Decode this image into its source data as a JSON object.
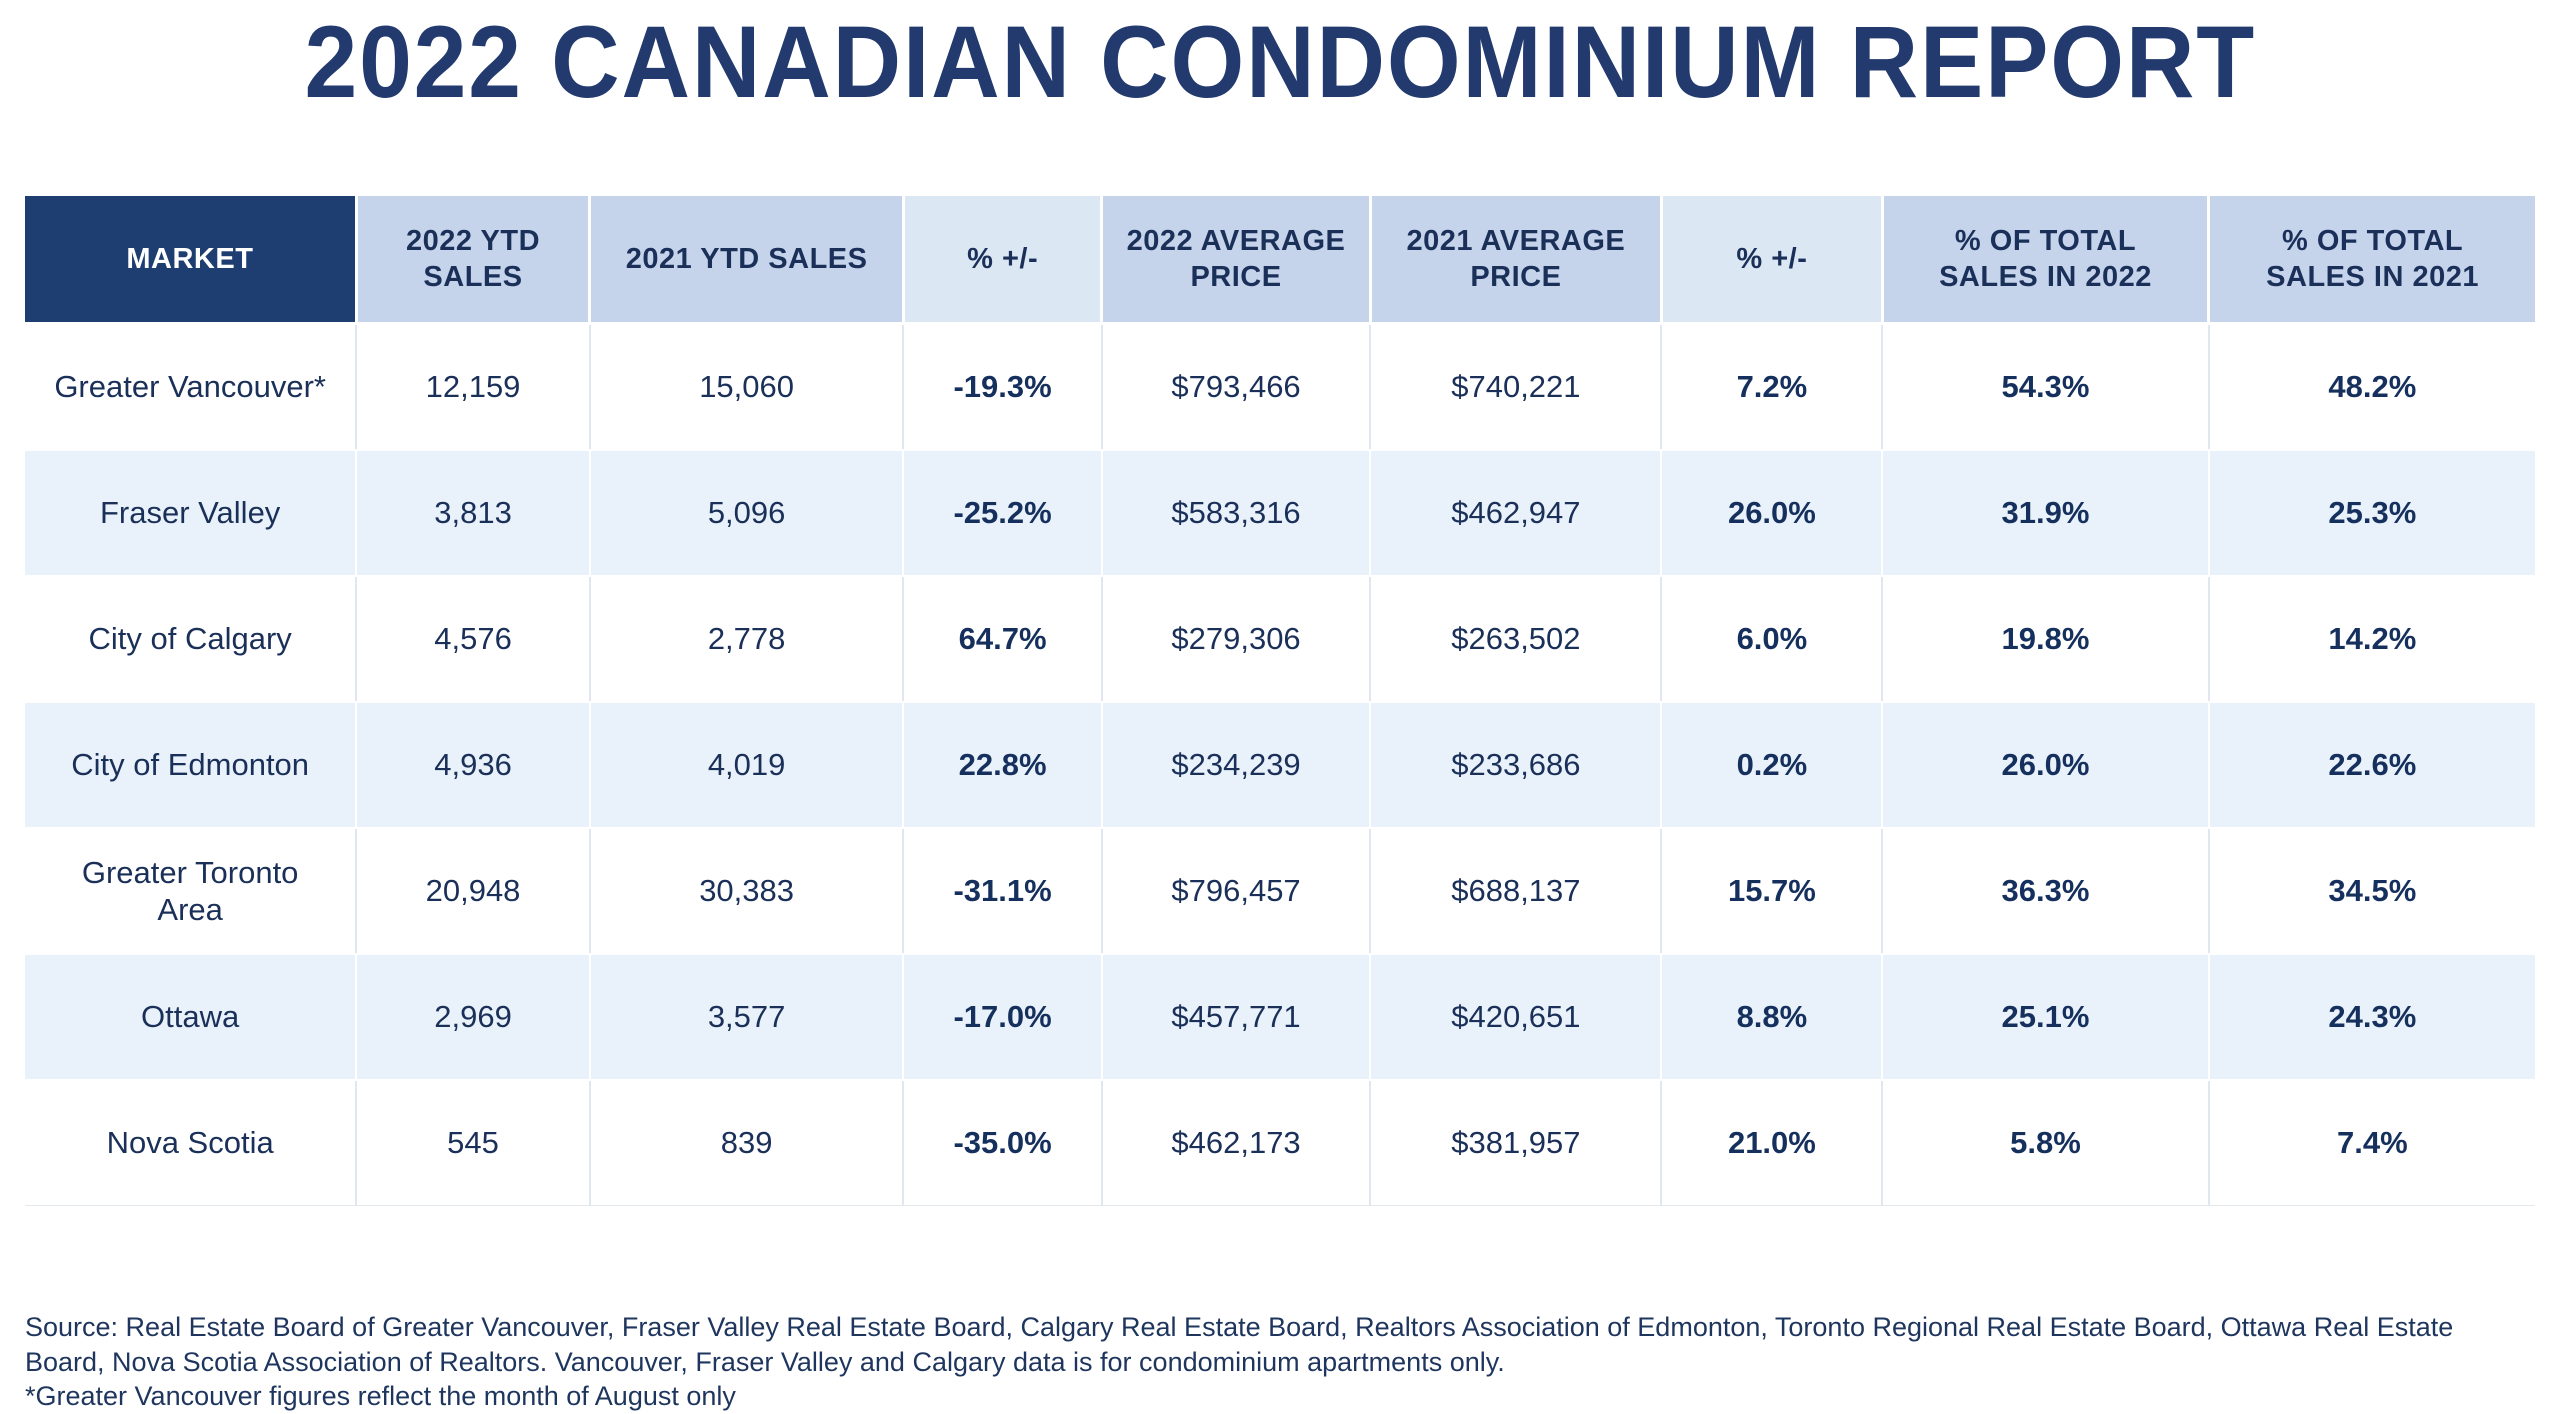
{
  "title": "2022 CANADIAN CONDOMINIUM REPORT",
  "colors": {
    "title_navy": "#233a6e",
    "header_dark_bg": "#1e3d70",
    "header_blue_bg": "#c5d3eb",
    "header_light_bg": "#dce7f4",
    "row_alt_bg": "#e9f2fa",
    "cell_text_navy": "#1b3059"
  },
  "table": {
    "columns": [
      {
        "key": "market",
        "label": "MARKET",
        "variant": "dark",
        "emphasis": false
      },
      {
        "key": "sales2022",
        "label": "2022 YTD SALES",
        "variant": "blue",
        "emphasis": false
      },
      {
        "key": "sales2021",
        "label": "2021 YTD SALES",
        "variant": "blue",
        "emphasis": false
      },
      {
        "key": "salesChange",
        "label": "% +/-",
        "variant": "light",
        "emphasis": true
      },
      {
        "key": "price2022",
        "label": "2022 AVERAGE PRICE",
        "variant": "blue",
        "emphasis": false
      },
      {
        "key": "price2021",
        "label": "2021 AVERAGE PRICE",
        "variant": "blue",
        "emphasis": false
      },
      {
        "key": "priceChange",
        "label": "% +/-",
        "variant": "light",
        "emphasis": true
      },
      {
        "key": "share2022",
        "label": "% OF TOTAL SALES IN 2022",
        "variant": "blue",
        "emphasis": true
      },
      {
        "key": "share2021",
        "label": "% OF TOTAL SALES IN 2021",
        "variant": "blue",
        "emphasis": true
      }
    ],
    "rows": [
      {
        "market": "Greater Vancouver*",
        "sales2022": "12,159",
        "sales2021": "15,060",
        "salesChange": "-19.3%",
        "price2022": "$793,466",
        "price2021": "$740,221",
        "priceChange": "7.2%",
        "share2022": "54.3%",
        "share2021": "48.2%"
      },
      {
        "market": "Fraser Valley",
        "sales2022": "3,813",
        "sales2021": "5,096",
        "salesChange": "-25.2%",
        "price2022": "$583,316",
        "price2021": "$462,947",
        "priceChange": "26.0%",
        "share2022": "31.9%",
        "share2021": "25.3%"
      },
      {
        "market": "City of Calgary",
        "sales2022": "4,576",
        "sales2021": "2,778",
        "salesChange": "64.7%",
        "price2022": "$279,306",
        "price2021": "$263,502",
        "priceChange": "6.0%",
        "share2022": "19.8%",
        "share2021": "14.2%"
      },
      {
        "market": "City of Edmonton",
        "sales2022": "4,936",
        "sales2021": "4,019",
        "salesChange": "22.8%",
        "price2022": "$234,239",
        "price2021": "$233,686",
        "priceChange": "0.2%",
        "share2022": "26.0%",
        "share2021": "22.6%"
      },
      {
        "market": "Greater Toronto Area",
        "sales2022": "20,948",
        "sales2021": "30,383",
        "salesChange": "-31.1%",
        "price2022": "$796,457",
        "price2021": "$688,137",
        "priceChange": "15.7%",
        "share2022": "36.3%",
        "share2021": "34.5%"
      },
      {
        "market": "Ottawa",
        "sales2022": "2,969",
        "sales2021": "3,577",
        "salesChange": "-17.0%",
        "price2022": "$457,771",
        "price2021": "$420,651",
        "priceChange": "8.8%",
        "share2022": "25.1%",
        "share2021": "24.3%"
      },
      {
        "market": "Nova Scotia",
        "sales2022": "545",
        "sales2021": "839",
        "salesChange": "-35.0%",
        "price2022": "$462,173",
        "price2021": "$381,957",
        "priceChange": "21.0%",
        "share2022": "5.8%",
        "share2021": "7.4%"
      }
    ]
  },
  "footer": {
    "source": "Source: Real Estate Board of Greater Vancouver, Fraser Valley Real Estate Board, Calgary Real Estate Board, Realtors Association of Edmonton, Toronto Regional Real Estate Board, Ottawa Real Estate Board, Nova Scotia Association of Realtors. Vancouver, Fraser Valley and Calgary data is for condominium apartments only.",
    "note": "*Greater Vancouver figures reflect the month of August only"
  },
  "chart_data": {
    "type": "table",
    "title": "2022 Canadian Condominium Report",
    "columns": [
      "Market",
      "2022 YTD Sales",
      "2021 YTD Sales",
      "% +/- (sales)",
      "2022 Average Price",
      "2021 Average Price",
      "% +/- (price)",
      "% of Total Sales in 2022",
      "% of Total Sales in 2021"
    ],
    "rows": [
      [
        "Greater Vancouver*",
        12159,
        15060,
        -19.3,
        793466,
        740221,
        7.2,
        54.3,
        48.2
      ],
      [
        "Fraser Valley",
        3813,
        5096,
        -25.2,
        583316,
        462947,
        26.0,
        31.9,
        25.3
      ],
      [
        "City of Calgary",
        4576,
        2778,
        64.7,
        279306,
        263502,
        6.0,
        19.8,
        14.2
      ],
      [
        "City of Edmonton",
        4936,
        4019,
        22.8,
        234239,
        233686,
        0.2,
        26.0,
        22.6
      ],
      [
        "Greater Toronto Area",
        20948,
        30383,
        -31.1,
        796457,
        688137,
        15.7,
        36.3,
        34.5
      ],
      [
        "Ottawa",
        2969,
        3577,
        -17.0,
        457771,
        420651,
        8.8,
        25.1,
        24.3
      ],
      [
        "Nova Scotia",
        545,
        839,
        -35.0,
        462173,
        381957,
        21.0,
        5.8,
        7.4
      ]
    ]
  }
}
